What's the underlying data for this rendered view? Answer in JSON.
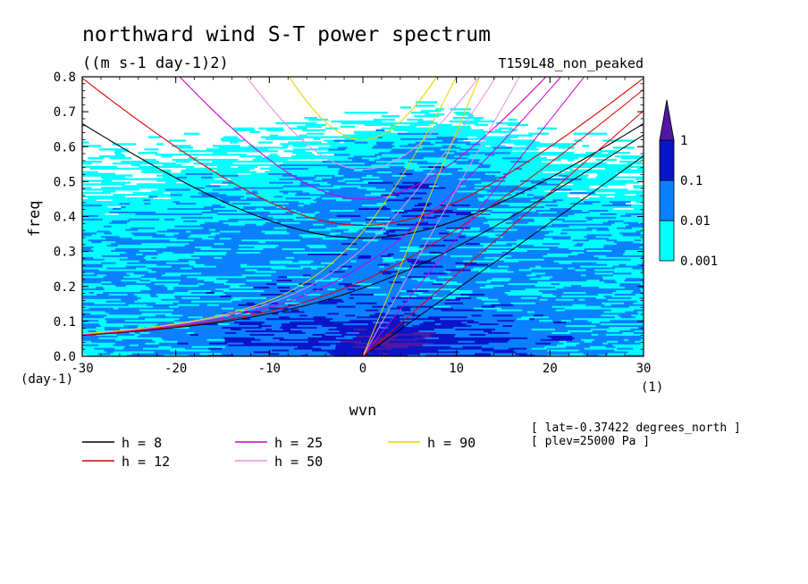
{
  "chart_data": {
    "type": "heatmap",
    "title": "northward wind S-T power spectrum",
    "subtitle": "((m s-1 day-1)2)",
    "run_label": "T159L48_non_peaked",
    "xlabel": "wvn",
    "ylabel": "freq",
    "x_unit": "(1)",
    "y_unit": "(day-1)",
    "xlim": [
      -30,
      30
    ],
    "ylim": [
      0,
      0.8
    ],
    "x_ticks": [
      -30,
      -20,
      -10,
      0,
      10,
      20,
      30
    ],
    "x_tick_labels": [
      "-30",
      "-20",
      "-10",
      "0",
      "10",
      "20",
      "30"
    ],
    "y_ticks": [
      0,
      0.1,
      0.2,
      0.3,
      0.4,
      0.5,
      0.6,
      0.7,
      0.8
    ],
    "y_tick_labels": [
      "0.0",
      "0.1",
      "0.2",
      "0.3",
      "0.4",
      "0.5",
      "0.6",
      "0.7",
      "0.8"
    ],
    "colorbar": {
      "levels": [
        "0.001",
        "0.01",
        "0.1",
        "1"
      ],
      "colors": [
        "#00ffff",
        "#0a80ff",
        "#0a14c8",
        "#5018a0"
      ]
    },
    "dispersion_curves": [
      {
        "label": "h =  8",
        "h": 8,
        "color": "#000000"
      },
      {
        "label": "h = 12",
        "h": 12,
        "color": "#e00000"
      },
      {
        "label": "h = 25",
        "h": 25,
        "color": "#d000d0"
      },
      {
        "label": "h = 50",
        "h": 50,
        "color": "#e890e0"
      },
      {
        "label": "h = 90",
        "h": 90,
        "color": "#f0d000"
      }
    ],
    "info_lines": [
      "[ lat=-0.37422 degrees_north ]",
      "[ plev=25000 Pa ]"
    ]
  }
}
